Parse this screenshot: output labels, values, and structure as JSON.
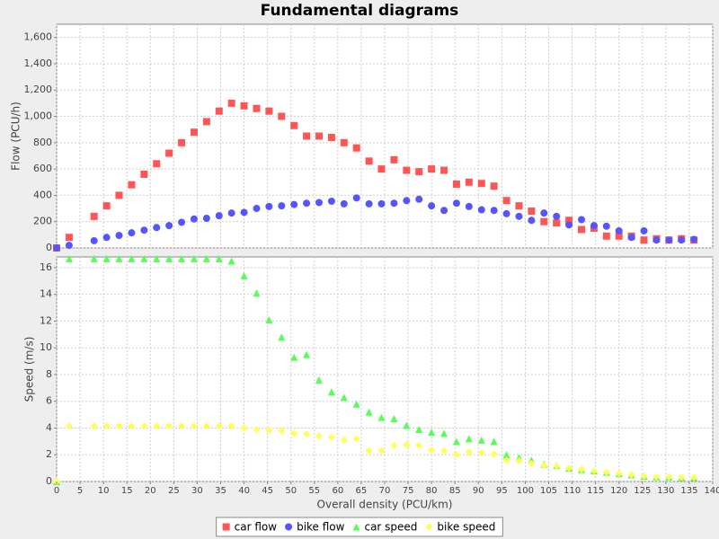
{
  "chart_data": {
    "type": "scatter",
    "title": "Fundamental diagrams",
    "x_label": "Overall density (PCU/km)",
    "xlim": [
      0,
      140
    ],
    "xticks": [
      0,
      5,
      10,
      15,
      20,
      25,
      30,
      35,
      40,
      45,
      50,
      55,
      60,
      65,
      70,
      75,
      80,
      85,
      90,
      95,
      100,
      105,
      110,
      115,
      120,
      125,
      130,
      135,
      140
    ],
    "grid": true,
    "legend": "bottom",
    "x": [
      0,
      2.67,
      8,
      10.67,
      13.33,
      16,
      18.67,
      21.33,
      24,
      26.67,
      29.33,
      32,
      34.67,
      37.33,
      40,
      42.67,
      45.33,
      48,
      50.67,
      53.33,
      56,
      58.67,
      61.33,
      64,
      66.67,
      69.33,
      72,
      74.67,
      77.33,
      80,
      82.67,
      85.33,
      88,
      90.67,
      93.33,
      96,
      98.67,
      101.33,
      104,
      106.67,
      109.33,
      112,
      114.67,
      117.33,
      120,
      122.67,
      125.33,
      128,
      130.67,
      133.33,
      136
    ],
    "subplots": [
      {
        "y_label": "Flow (PCU/h)",
        "ylim": [
          0,
          1700
        ],
        "yticks": [
          0,
          200,
          400,
          600,
          800,
          {
            "value": 1000,
            "label": "1,000"
          },
          {
            "value": 1200,
            "label": "1,200"
          },
          {
            "value": 1400,
            "label": "1,400"
          },
          {
            "value": 1600,
            "label": "1,600"
          }
        ],
        "series": [
          {
            "name": "car flow",
            "color": "#ff5555",
            "shape": "square",
            "values": [
              0,
              80,
              240,
              320,
              400,
              480,
              560,
              640,
              720,
              800,
              880,
              960,
              1040,
              1100,
              1080,
              1060,
              1040,
              1000,
              930,
              850,
              850,
              840,
              800,
              760,
              660,
              600,
              670,
              590,
              580,
              600,
              590,
              485,
              500,
              490,
              470,
              360,
              320,
              280,
              200,
              190,
              210,
              140,
              150,
              90,
              90,
              90,
              60,
              70,
              60,
              70,
              60
            ]
          },
          {
            "name": "bike flow",
            "color": "#5555ff",
            "shape": "circle",
            "values": [
              0,
              20,
              55,
              80,
              95,
              115,
              135,
              155,
              170,
              195,
              220,
              225,
              245,
              265,
              270,
              300,
              315,
              320,
              330,
              340,
              345,
              355,
              335,
              380,
              335,
              335,
              340,
              360,
              370,
              320,
              285,
              340,
              315,
              290,
              285,
              260,
              240,
              210,
              265,
              240,
              175,
              215,
              170,
              165,
              130,
              80,
              130,
              60,
              60,
              60,
              65
            ]
          }
        ]
      },
      {
        "y_label": "Speed (m/s)",
        "ylim": [
          0,
          16.8
        ],
        "yticks": [
          0,
          2,
          4,
          6,
          8,
          10,
          12,
          14,
          16
        ],
        "series": [
          {
            "name": "car speed",
            "color": "#55ff55",
            "shape": "triangle",
            "values": [
              0,
              16.67,
              16.67,
              16.67,
              16.67,
              16.67,
              16.67,
              16.67,
              16.67,
              16.67,
              16.67,
              16.67,
              16.67,
              16.5,
              15.4,
              14.1,
              12.1,
              10.8,
              9.3,
              9.5,
              7.6,
              6.7,
              6.3,
              5.8,
              5.2,
              4.8,
              4.7,
              4.2,
              3.9,
              3.7,
              3.6,
              3.0,
              3.2,
              3.1,
              3.0,
              2.0,
              1.8,
              1.6,
              1.3,
              1.2,
              1.0,
              0.9,
              0.8,
              0.7,
              0.6,
              0.5,
              0.4,
              0.35,
              0.35,
              0.3,
              0.3
            ]
          },
          {
            "name": "bike speed",
            "color": "#ffff55",
            "shape": "diamond",
            "values": [
              0,
              4.15,
              4.15,
              4.15,
              4.15,
              4.15,
              4.15,
              4.15,
              4.15,
              4.15,
              4.15,
              4.15,
              4.15,
              4.15,
              4.0,
              3.9,
              3.85,
              3.8,
              3.6,
              3.55,
              3.4,
              3.3,
              3.1,
              3.2,
              2.3,
              2.3,
              2.7,
              2.75,
              2.7,
              2.35,
              2.3,
              2.0,
              2.2,
              2.15,
              2.05,
              1.6,
              1.55,
              1.35,
              1.2,
              1.15,
              1.0,
              0.9,
              0.8,
              0.7,
              0.6,
              0.5,
              0.4,
              0.35,
              0.35,
              0.3,
              0.3
            ]
          }
        ]
      }
    ]
  }
}
